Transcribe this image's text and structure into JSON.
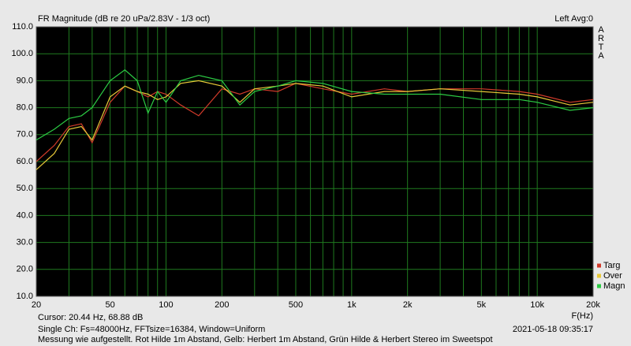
{
  "chart_data": {
    "type": "line",
    "title": "FR Magnitude (dB re 20 uPa/2.83V - 1/3 oct)",
    "header_right": "Left  Avg:0",
    "brand": "ARTA",
    "x_label": "F(Hz)",
    "cursor": "Cursor: 20.44 Hz, 68.88 dB",
    "info": "Single Ch: Fs=48000Hz, FFTsize=16384, Window=Uniform",
    "timestamp": "2021-05-18  09:35:17",
    "note": "Messung wie aufgestellt. Rot Hilde 1m Abstand, Gelb: Herbert 1m Abstand, Grün Hilde & Herbert Stereo im Sweetspot",
    "x_scale": "log",
    "grid": true,
    "background": "#000000",
    "grid_color": "#1f7a1f",
    "legend": "lower right",
    "xlim": [
      20,
      20000
    ],
    "xticks": [
      20,
      50,
      100,
      200,
      500,
      {
        "value": 1000,
        "label": "1k"
      },
      {
        "value": 2000,
        "label": "2k"
      },
      {
        "value": 5000,
        "label": "5k"
      },
      {
        "value": 10000,
        "label": "10k"
      },
      {
        "value": 20000,
        "label": "20k"
      }
    ],
    "xminor": [
      30,
      40,
      60,
      70,
      80,
      90,
      300,
      400,
      600,
      700,
      800,
      900,
      3000,
      4000,
      6000,
      7000,
      8000,
      9000
    ],
    "ylim": [
      10,
      110
    ],
    "yticks": [
      {
        "value": 10,
        "label": "10.0"
      },
      {
        "value": 20,
        "label": "20.0"
      },
      {
        "value": 30,
        "label": "30.0"
      },
      {
        "value": 40,
        "label": "40.0"
      },
      {
        "value": 50,
        "label": "50.0"
      },
      {
        "value": 60,
        "label": "60.0"
      },
      {
        "value": 70,
        "label": "70.0"
      },
      {
        "value": 80,
        "label": "80.0"
      },
      {
        "value": 90,
        "label": "90.0"
      },
      {
        "value": 100,
        "label": "100.0"
      },
      {
        "value": 110,
        "label": "110.0"
      }
    ],
    "x": [
      20,
      25,
      30,
      35,
      40,
      50,
      60,
      70,
      80,
      90,
      100,
      120,
      150,
      200,
      250,
      300,
      400,
      500,
      700,
      1000,
      1500,
      2000,
      3000,
      5000,
      8000,
      10000,
      15000,
      20000
    ],
    "series": [
      {
        "name": "Targ",
        "color": "#d03a2a",
        "values": [
          60,
          66,
          73,
          74,
          67,
          82,
          88,
          86,
          84,
          86,
          85,
          81,
          77,
          87,
          85,
          87,
          86,
          89,
          87,
          85,
          87,
          86,
          87,
          87,
          86,
          85,
          82,
          83
        ]
      },
      {
        "name": "Over",
        "color": "#e8c838",
        "values": [
          57,
          63,
          72,
          73,
          68,
          84,
          88,
          86,
          85,
          83,
          84,
          89,
          90,
          88,
          82,
          87,
          88,
          89,
          88,
          84,
          86,
          86,
          87,
          86,
          85,
          84,
          81,
          82
        ]
      },
      {
        "name": "Magn",
        "color": "#2ccc44",
        "values": [
          68,
          72,
          76,
          77,
          80,
          90,
          94,
          90,
          78,
          86,
          82,
          90,
          92,
          90,
          81,
          86,
          88,
          90,
          89,
          86,
          85,
          85,
          85,
          83,
          83,
          82,
          79,
          80
        ]
      }
    ]
  }
}
